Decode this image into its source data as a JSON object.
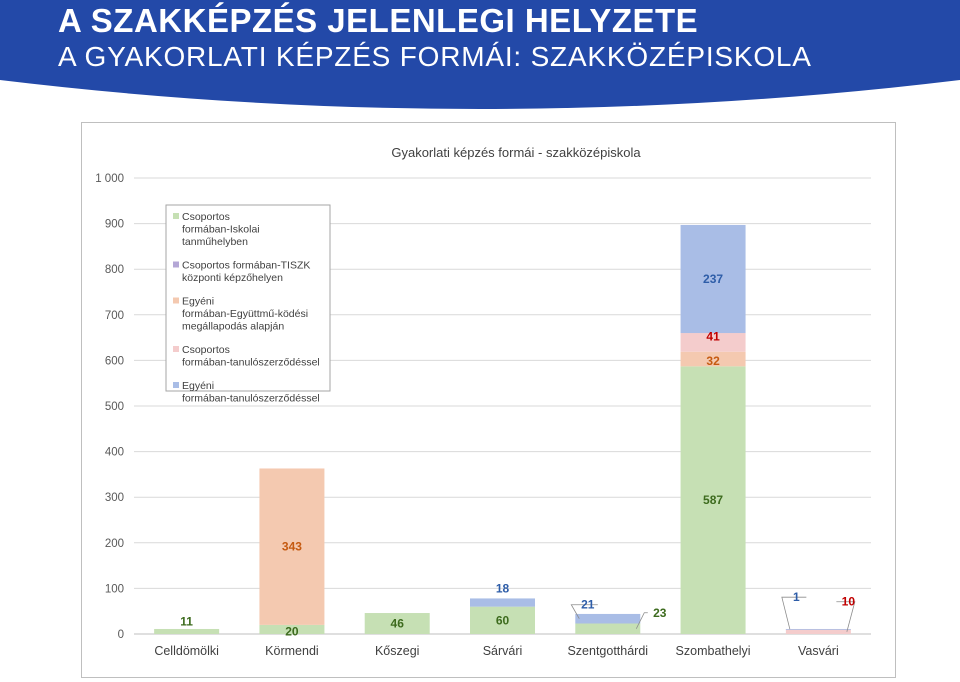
{
  "slide": {
    "title": "A SZAKKÉPZÉS JELENLEGI HELYZETE",
    "subtitle": "A GYAKORLATI KÉPZÉS FORMÁI: SZAKKÖZÉPISKOLA"
  },
  "colors": {
    "banner": "#2349a8",
    "green": "#c6e0b4",
    "purple": "#b4a7d6",
    "orange": "#f4c9b0",
    "pink": "#f4cccc",
    "blue": "#a9bde6"
  },
  "chart_data": {
    "type": "bar",
    "stacked": true,
    "title": "Gyakorlati képzés formái - szakközépiskola",
    "xlabel": "",
    "ylabel": "",
    "ylim": [
      0,
      1000
    ],
    "yticks": [
      0,
      100,
      200,
      300,
      400,
      500,
      600,
      700,
      800,
      900,
      1000
    ],
    "ytick_labels": [
      "0",
      "100",
      "200",
      "300",
      "400",
      "500",
      "600",
      "700",
      "800",
      "900",
      "1 000"
    ],
    "grid": true,
    "legend_position": "top-left",
    "categories": [
      "Celldömölki",
      "Körmendi",
      "Kőszegi",
      "Sárvári",
      "Szentgotthárdi",
      "Szombathelyi",
      "Vasvári"
    ],
    "series": [
      {
        "name": "Csoportos formában-Iskolai tanműhelyben",
        "color": "#c6e0b4",
        "label_color": "#3d6b1e",
        "values": [
          11,
          20,
          46,
          60,
          23,
          587,
          0
        ]
      },
      {
        "name": "Csoportos formában-TISZK központi képzőhelyen",
        "color": "#b4a7d6",
        "label_color": "#5b4a9b",
        "values": [
          0,
          0,
          0,
          0,
          0,
          0,
          0
        ]
      },
      {
        "name": "Egyéni formában-Együttmű-ködési megállapodás alapján",
        "color": "#f4c9b0",
        "label_color": "#c55a11",
        "values": [
          0,
          343,
          0,
          0,
          0,
          32,
          0
        ]
      },
      {
        "name": "Csoportos formában-tanulószerződéssel",
        "color": "#f4cccc",
        "label_color": "#c00000",
        "values": [
          0,
          0,
          0,
          0,
          0,
          41,
          10
        ]
      },
      {
        "name": "Egyéni formában-tanulószerződéssel",
        "color": "#a9bde6",
        "label_color": "#2e5da8",
        "values": [
          0,
          0,
          0,
          18,
          21,
          237,
          1
        ]
      }
    ],
    "data_labels": [
      {
        "category": 0,
        "series": 0,
        "text": "11"
      },
      {
        "category": 1,
        "series": 0,
        "text": "20"
      },
      {
        "category": 1,
        "series": 2,
        "text": "343"
      },
      {
        "category": 2,
        "series": 0,
        "text": "46"
      },
      {
        "category": 3,
        "series": 0,
        "text": "60"
      },
      {
        "category": 3,
        "series": 4,
        "text": "18"
      },
      {
        "category": 4,
        "series": 4,
        "text": "21"
      },
      {
        "category": 4,
        "series": 0,
        "text": "23"
      },
      {
        "category": 5,
        "series": 0,
        "text": "587"
      },
      {
        "category": 5,
        "series": 2,
        "text": "32"
      },
      {
        "category": 5,
        "series": 3,
        "text": "41"
      },
      {
        "category": 5,
        "series": 4,
        "text": "237"
      },
      {
        "category": 6,
        "series": 4,
        "text": "1"
      },
      {
        "category": 6,
        "series": 3,
        "text": "10"
      }
    ]
  }
}
